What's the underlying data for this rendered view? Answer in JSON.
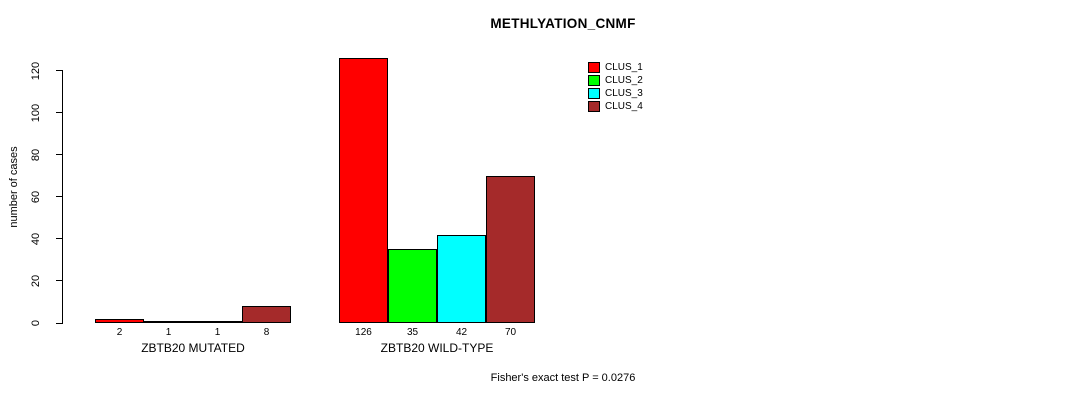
{
  "chart_data": {
    "type": "bar",
    "title": "METHLYATION_CNMF",
    "xlabel": "",
    "ylabel": "number of cases",
    "ylim": [
      0,
      126
    ],
    "yticks": [
      0,
      20,
      40,
      60,
      80,
      100,
      120
    ],
    "grid": false,
    "legend_position": "top-right",
    "legend": [
      {
        "name": "CLUS_1",
        "color": "#FF0000"
      },
      {
        "name": "CLUS_2",
        "color": "#00FF00"
      },
      {
        "name": "CLUS_3",
        "color": "#00FFFF"
      },
      {
        "name": "CLUS_4",
        "color": "#A52A2A"
      }
    ],
    "categories": [
      "ZBTB20 MUTATED",
      "ZBTB20 WILD-TYPE"
    ],
    "series": [
      {
        "name": "CLUS_1",
        "values": [
          2,
          126
        ]
      },
      {
        "name": "CLUS_2",
        "values": [
          1,
          35
        ]
      },
      {
        "name": "CLUS_3",
        "values": [
          1,
          42
        ]
      },
      {
        "name": "CLUS_4",
        "values": [
          8,
          70
        ]
      }
    ],
    "bar_value_labels": [
      [
        "2",
        "1",
        "1",
        "8"
      ],
      [
        "126",
        "35",
        "42",
        "70"
      ]
    ],
    "annotation": "Fisher's exact test P = 0.0276"
  }
}
